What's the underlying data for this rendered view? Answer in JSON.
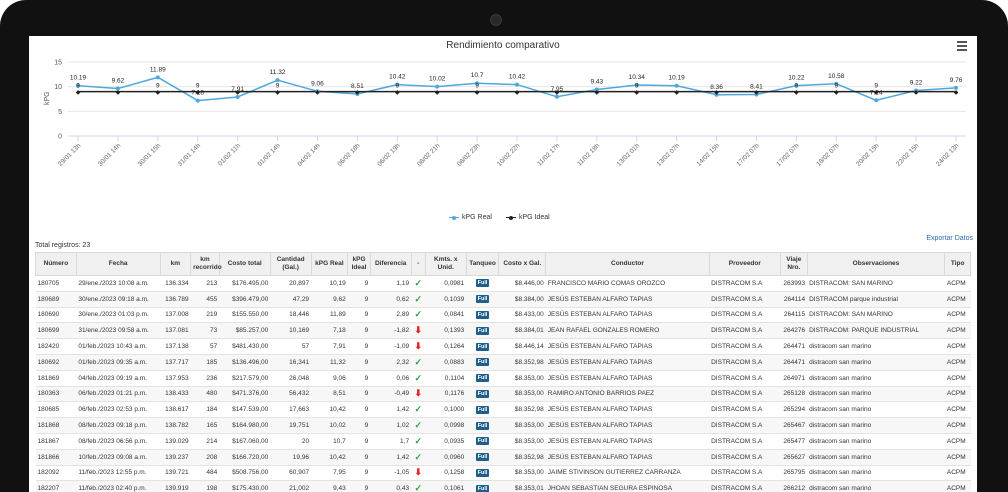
{
  "chart_data": {
    "type": "line",
    "title": "Rendimiento comparativo",
    "ylabel": "kPG",
    "ylim": [
      0,
      15
    ],
    "yticks": [
      "0",
      "5",
      "10",
      "15"
    ],
    "categories": [
      "29/01 13h",
      "30/01 14h",
      "30/01 15h",
      "31/01 14h",
      "01/02 11h",
      "01/02 14h",
      "04/02 14h",
      "06/02 18h",
      "06/02 19h",
      "08/02 21h",
      "08/02 23h",
      "10/02 22h",
      "11/02 17h",
      "11/02 18h",
      "13/02 01h",
      "13/02 07h",
      "14/02 15h",
      "17/02 07h",
      "17/02 07h",
      "18/02 07h",
      "20/02 15h",
      "22/02 15h",
      "24/02 13h"
    ],
    "series": [
      {
        "name": "kPG Real",
        "color": "#4fa8dc",
        "values": [
          10.19,
          9.62,
          11.89,
          7.18,
          7.91,
          11.32,
          9.06,
          8.51,
          10.42,
          10.02,
          10.7,
          10.42,
          7.95,
          9.43,
          10.34,
          10.19,
          8.36,
          8.41,
          10.22,
          10.58,
          7.24,
          9.22,
          9.76
        ],
        "labels": [
          "10.19",
          "9.62",
          "11.89",
          "7.18",
          "7.91",
          "11.32",
          "9.06",
          "8.51",
          "10.42",
          "10.02",
          "10.7",
          "10.42",
          "7.95",
          "9.43",
          "10.34",
          "10.19",
          "8.36",
          "8.41",
          "10.22",
          "10.58",
          "7.24",
          "9.22",
          "9.76"
        ]
      },
      {
        "name": "kPG Ideal",
        "color": "#222222",
        "values": [
          9,
          9,
          9,
          9,
          9,
          9,
          9,
          9,
          9,
          9,
          9,
          9,
          9,
          9,
          9,
          9,
          9,
          9,
          9,
          9,
          9,
          9,
          9
        ],
        "labels": [
          "9",
          "",
          "9",
          "9",
          "",
          "9",
          "",
          "",
          "9",
          "",
          "9",
          "",
          "",
          "",
          "9",
          "",
          "",
          "",
          "9",
          "9",
          "9",
          "",
          ""
        ]
      }
    ],
    "grid": true,
    "legend": "bottom"
  },
  "toolbar": {
    "total_label": "Total registros: 23",
    "export_label": "Exportar Datos"
  },
  "table": {
    "columns": [
      "Número",
      "Fecha",
      "km",
      "km recorrido",
      "Costo total",
      "Cantidad (Gal.)",
      "kPG Real",
      "kPG Ideal",
      "Diferencia",
      "-",
      "Kmts. x Unid.",
      "Tanqueo",
      "Costo x Gal.",
      "Conductor",
      "Proveedor",
      "Viaje Nro.",
      "Observaciones",
      "Tipo"
    ],
    "rows": [
      [
        "180705",
        "29/ene./2023 10:08 a.m.",
        "136.334",
        "213",
        "$176.495,00",
        "20,897",
        "10,19",
        "9",
        "1,19",
        "up",
        "0,0981",
        "Full",
        "$8.446,00",
        "FRANCISCO MARIO COMAS OROZCO",
        "DISTRACOM S.A",
        "263993",
        "DISTRACOM: SAN MARINO",
        "ACPM"
      ],
      [
        "180689",
        "30/ene./2023 09:18 a.m.",
        "136.789",
        "455",
        "$396.479,00",
        "47,29",
        "9,62",
        "9",
        "0,62",
        "up",
        "0,1039",
        "Full",
        "$8.384,00",
        "JESÚS ESTEBAN ALFARO TAPIAS",
        "DISTRACOM S.A",
        "264114",
        "DISTRACOM parque industrial",
        "ACPM"
      ],
      [
        "180690",
        "30/ene./2023 01:03 p.m.",
        "137.008",
        "219",
        "$155.550,00",
        "18,446",
        "11,89",
        "9",
        "2,89",
        "up",
        "0,0841",
        "Full",
        "$8.433,00",
        "JESÚS ESTEBAN ALFARO TAPIAS",
        "DISTRACOM S.A",
        "264115",
        "DISTRACOM: SAN MARINO",
        "ACPM"
      ],
      [
        "180699",
        "31/ene./2023 09:58 a.m.",
        "137.081",
        "73",
        "$85.257,00",
        "10,169",
        "7,18",
        "9",
        "-1,82",
        "down",
        "0,1393",
        "Full",
        "$8.384,01",
        "JEAN RAFAEL GONZALES ROMERO",
        "DISTRACOM S.A",
        "264276",
        "DISTRACOM: PARQUE INDUSTRIAL",
        "ACPM"
      ],
      [
        "182420",
        "01/feb./2023 10:43 a.m.",
        "137.138",
        "57",
        "$481.430,00",
        "57",
        "7,91",
        "9",
        "-1,09",
        "down",
        "0,1264",
        "Full",
        "$8.446,14",
        "JESÚS ESTEBAN ALFARO TAPIAS",
        "DISTRACOM S.A",
        "264471",
        "distracom san marino",
        "ACPM"
      ],
      [
        "180692",
        "01/feb./2023 09:35 a.m.",
        "137.717",
        "185",
        "$136.496,00",
        "16,341",
        "11,32",
        "9",
        "2,32",
        "up",
        "0,0883",
        "Full",
        "$8.352,98",
        "JESÚS ESTEBAN ALFARO TAPIAS",
        "DISTRACOM S.A",
        "264471",
        "distracom san marino",
        "ACPM"
      ],
      [
        "181869",
        "04/feb./2023 09:19 a.m.",
        "137.953",
        "236",
        "$217.579,00",
        "26,048",
        "9,06",
        "9",
        "0,06",
        "up",
        "0,1104",
        "Full",
        "$8.353,00",
        "JESÚS ESTEBAN ALFARO TAPIAS",
        "DISTRACOM S.A",
        "264971",
        "distracom san marino",
        "ACPM"
      ],
      [
        "180363",
        "06/feb./2023 01:21 p.m.",
        "138.433",
        "480",
        "$471.376,00",
        "56,432",
        "8,51",
        "9",
        "-0,49",
        "down",
        "0,1176",
        "Full",
        "$8.353,00",
        "RAMIRO ANTONIO BARRIOS PAEZ",
        "DISTRACOM S.A",
        "265128",
        "distracom san marino",
        "ACPM"
      ],
      [
        "180685",
        "06/feb./2023 02:53 p.m.",
        "138.617",
        "184",
        "$147.539,00",
        "17,663",
        "10,42",
        "9",
        "1,42",
        "up",
        "0,1000",
        "Full",
        "$8.352,98",
        "JESÚS ESTEBAN ALFARO TAPIAS",
        "DISTRACOM S.A",
        "265294",
        "distracom san marino",
        "ACPM"
      ],
      [
        "181868",
        "08/feb./2023 09:18 p.m.",
        "138.782",
        "165",
        "$164.980,00",
        "19,751",
        "10,02",
        "9",
        "1,02",
        "up",
        "0,0998",
        "Full",
        "$8.353,00",
        "JESÚS ESTEBAN ALFARO TAPIAS",
        "DISTRACOM S.A",
        "265467",
        "distracom san marino",
        "ACPM"
      ],
      [
        "181867",
        "08/feb./2023 06:56 p.m.",
        "139.029",
        "214",
        "$167.060,00",
        "20",
        "10,7",
        "9",
        "1,7",
        "up",
        "0,0935",
        "Full",
        "$8.353,00",
        "JESÚS ESTEBAN ALFARO TAPIAS",
        "DISTRACOM S.A",
        "265477",
        "distracom san marino",
        "ACPM"
      ],
      [
        "181866",
        "10/feb./2023 09:08 a.m.",
        "139.237",
        "208",
        "$166.720,00",
        "19,96",
        "10,42",
        "9",
        "1,42",
        "up",
        "0,0960",
        "Full",
        "$8.352,98",
        "JESÚS ESTEBAN ALFARO TAPIAS",
        "DISTRACOM S.A",
        "265627",
        "distracom san marino",
        "ACPM"
      ],
      [
        "182092",
        "11/feb./2023 12:55 p.m.",
        "139.721",
        "484",
        "$508.756,00",
        "60,907",
        "7,95",
        "9",
        "-1,05",
        "down",
        "0,1258",
        "Full",
        "$8.353,00",
        "JAIME STIVINSON GUTIERREZ CARRANZA",
        "DISTRACOM S.A",
        "265795",
        "distracom san marino",
        "ACPM"
      ],
      [
        "182207",
        "11/feb./2023 02:40 p.m.",
        "139.919",
        "198",
        "$175.430,00",
        "21,002",
        "9,43",
        "9",
        "0,43",
        "up",
        "0,1061",
        "Full",
        "$8.353,01",
        "JHOAN SEBASTIAN SEGURA ESPINOSA",
        "DISTRACOM S.A",
        "266212",
        "distracom san marino",
        "ACPM"
      ]
    ]
  }
}
